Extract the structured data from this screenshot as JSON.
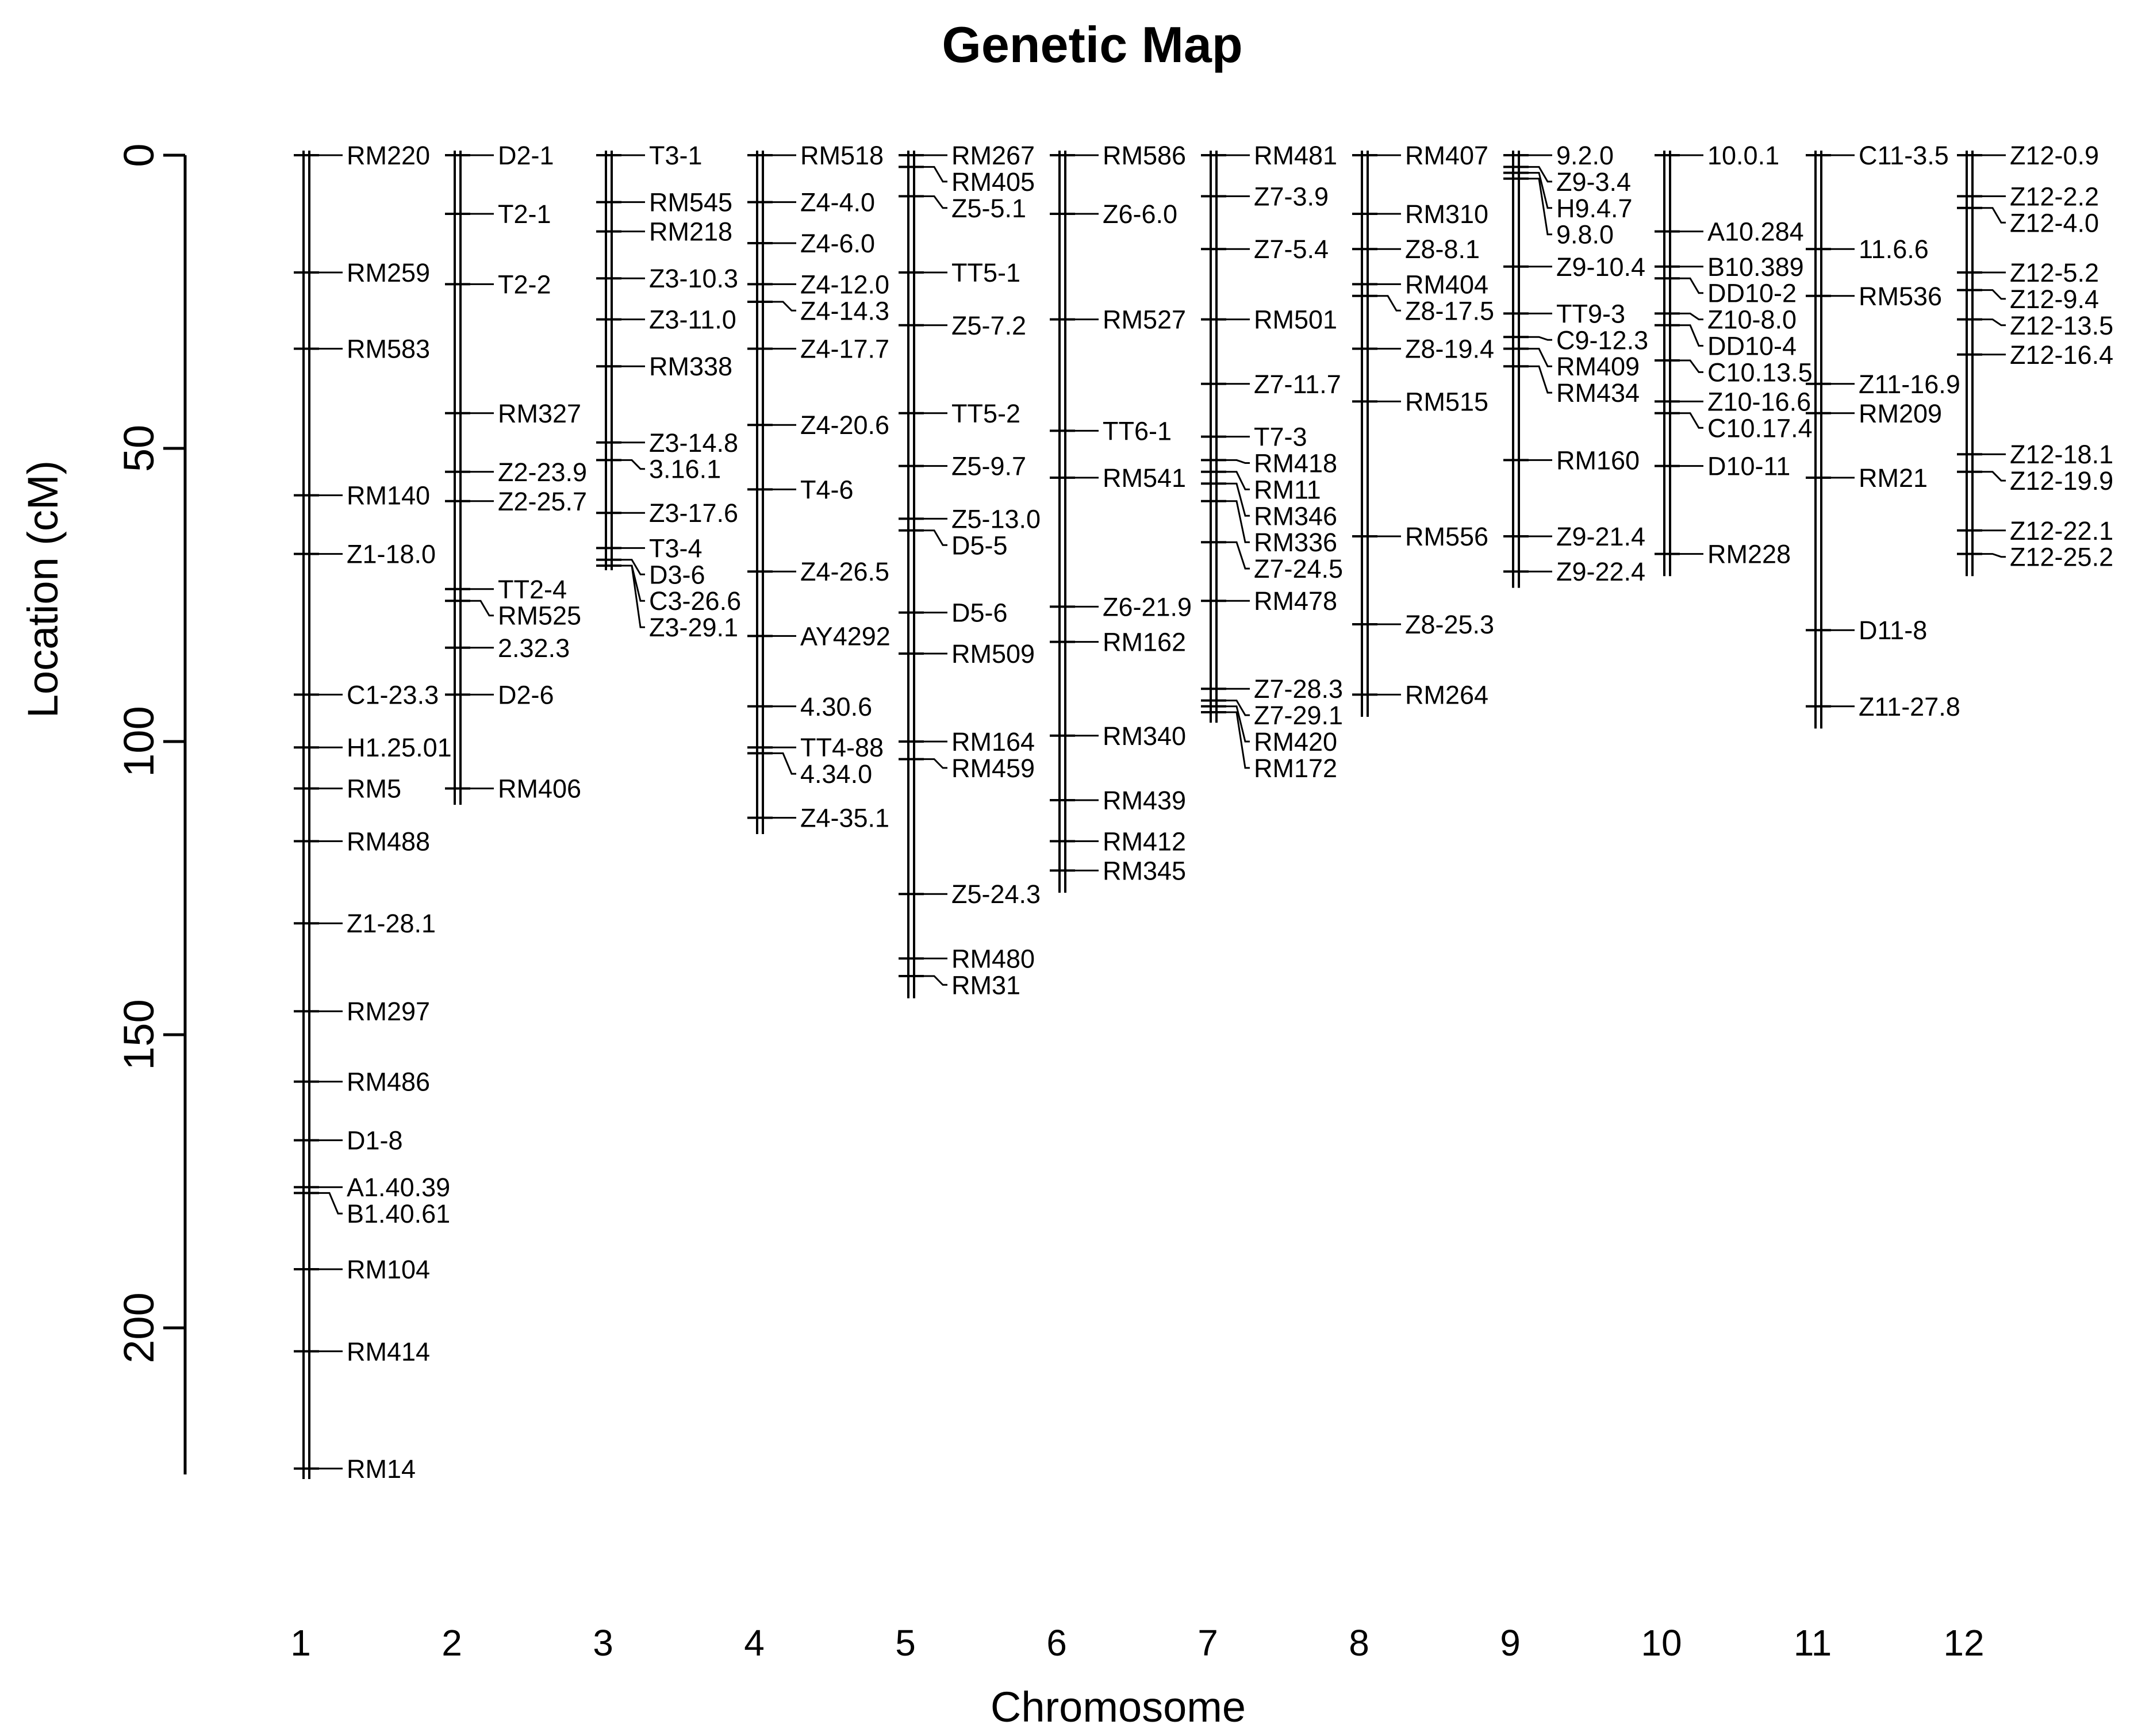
{
  "chart_data": {
    "type": "genetic-map",
    "title": "Genetic Map",
    "xlabel": "Chromosome",
    "ylabel": "Location (cM)",
    "ylim": [
      0,
      225
    ],
    "yticks": [
      0,
      50,
      100,
      150,
      200
    ],
    "chromosomes": [
      {
        "name": "1",
        "length": 225,
        "markers": [
          {
            "name": "RM220",
            "pos": 0
          },
          {
            "name": "RM259",
            "pos": 20
          },
          {
            "name": "RM583",
            "pos": 33
          },
          {
            "name": "RM140",
            "pos": 58
          },
          {
            "name": "Z1-18.0",
            "pos": 68
          },
          {
            "name": "C1-23.3",
            "pos": 92
          },
          {
            "name": "H1.25.01",
            "pos": 101
          },
          {
            "name": "RM5",
            "pos": 108
          },
          {
            "name": "RM488",
            "pos": 117
          },
          {
            "name": "Z1-28.1",
            "pos": 131
          },
          {
            "name": "RM297",
            "pos": 146
          },
          {
            "name": "RM486",
            "pos": 158
          },
          {
            "name": "D1-8",
            "pos": 168
          },
          {
            "name": "A1.40.39",
            "pos": 176
          },
          {
            "name": "B1.40.61",
            "pos": 177
          },
          {
            "name": "RM104",
            "pos": 190
          },
          {
            "name": "RM414",
            "pos": 204
          },
          {
            "name": "RM14",
            "pos": 224
          }
        ]
      },
      {
        "name": "2",
        "length": 110,
        "markers": [
          {
            "name": "D2-1",
            "pos": 0
          },
          {
            "name": "T2-1",
            "pos": 10
          },
          {
            "name": "T2-2",
            "pos": 22
          },
          {
            "name": "RM327",
            "pos": 44
          },
          {
            "name": "Z2-23.9",
            "pos": 54
          },
          {
            "name": "Z2-25.7",
            "pos": 59
          },
          {
            "name": "TT2-4",
            "pos": 74
          },
          {
            "name": "RM525",
            "pos": 76
          },
          {
            "name": "2.32.3",
            "pos": 84
          },
          {
            "name": "D2-6",
            "pos": 92
          },
          {
            "name": "RM406",
            "pos": 108
          }
        ]
      },
      {
        "name": "3",
        "length": 70,
        "markers": [
          {
            "name": "T3-1",
            "pos": 0
          },
          {
            "name": "RM545",
            "pos": 8
          },
          {
            "name": "RM218",
            "pos": 13
          },
          {
            "name": "Z3-10.3",
            "pos": 21
          },
          {
            "name": "Z3-11.0",
            "pos": 28
          },
          {
            "name": "RM338",
            "pos": 36
          },
          {
            "name": "Z3-14.8",
            "pos": 49
          },
          {
            "name": "3.16.1",
            "pos": 52
          },
          {
            "name": "Z3-17.6",
            "pos": 61
          },
          {
            "name": "T3-4",
            "pos": 67
          },
          {
            "name": "D3-6",
            "pos": 69
          },
          {
            "name": "C3-26.6",
            "pos": 70
          },
          {
            "name": "Z3-29.1",
            "pos": 70
          }
        ]
      },
      {
        "name": "4",
        "length": 115,
        "markers": [
          {
            "name": "RM518",
            "pos": 0
          },
          {
            "name": "Z4-4.0",
            "pos": 8
          },
          {
            "name": "Z4-6.0",
            "pos": 15
          },
          {
            "name": "Z4-12.0",
            "pos": 22
          },
          {
            "name": "Z4-14.3",
            "pos": 25
          },
          {
            "name": "Z4-17.7",
            "pos": 33
          },
          {
            "name": "Z4-20.6",
            "pos": 46
          },
          {
            "name": "T4-6",
            "pos": 57
          },
          {
            "name": "Z4-26.5",
            "pos": 71
          },
          {
            "name": "AY4292",
            "pos": 82
          },
          {
            "name": "4.30.6",
            "pos": 94
          },
          {
            "name": "TT4-88",
            "pos": 101
          },
          {
            "name": "4.34.0",
            "pos": 102
          },
          {
            "name": "Z4-35.1",
            "pos": 113
          }
        ]
      },
      {
        "name": "5",
        "length": 143,
        "markers": [
          {
            "name": "RM267",
            "pos": 0
          },
          {
            "name": "RM405",
            "pos": 2
          },
          {
            "name": "Z5-5.1",
            "pos": 7
          },
          {
            "name": "TT5-1",
            "pos": 20
          },
          {
            "name": "Z5-7.2",
            "pos": 29
          },
          {
            "name": "TT5-2",
            "pos": 44
          },
          {
            "name": "Z5-9.7",
            "pos": 53
          },
          {
            "name": "Z5-13.0",
            "pos": 62
          },
          {
            "name": "D5-5",
            "pos": 64
          },
          {
            "name": "D5-6",
            "pos": 78
          },
          {
            "name": "RM509",
            "pos": 85
          },
          {
            "name": "RM164",
            "pos": 100
          },
          {
            "name": "RM459",
            "pos": 103
          },
          {
            "name": "Z5-24.3",
            "pos": 126
          },
          {
            "name": "RM480",
            "pos": 137
          },
          {
            "name": "RM31",
            "pos": 140
          }
        ]
      },
      {
        "name": "6",
        "length": 125,
        "markers": [
          {
            "name": "RM586",
            "pos": 0
          },
          {
            "name": "Z6-6.0",
            "pos": 10
          },
          {
            "name": "RM527",
            "pos": 28
          },
          {
            "name": "TT6-1",
            "pos": 47
          },
          {
            "name": "RM541",
            "pos": 55
          },
          {
            "name": "Z6-21.9",
            "pos": 77
          },
          {
            "name": "RM162",
            "pos": 83
          },
          {
            "name": "RM340",
            "pos": 99
          },
          {
            "name": "RM439",
            "pos": 110
          },
          {
            "name": "RM412",
            "pos": 117
          },
          {
            "name": "RM345",
            "pos": 122
          }
        ]
      },
      {
        "name": "7",
        "length": 96,
        "markers": [
          {
            "name": "RM481",
            "pos": 0
          },
          {
            "name": "Z7-3.9",
            "pos": 7
          },
          {
            "name": "Z7-5.4",
            "pos": 16
          },
          {
            "name": "RM501",
            "pos": 28
          },
          {
            "name": "Z7-11.7",
            "pos": 39
          },
          {
            "name": "T7-3",
            "pos": 48
          },
          {
            "name": "RM418",
            "pos": 52
          },
          {
            "name": "RM11",
            "pos": 54
          },
          {
            "name": "RM346",
            "pos": 56
          },
          {
            "name": "RM336",
            "pos": 59
          },
          {
            "name": "Z7-24.5",
            "pos": 66
          },
          {
            "name": "RM478",
            "pos": 76
          },
          {
            "name": "Z7-28.3",
            "pos": 91
          },
          {
            "name": "Z7-29.1",
            "pos": 93
          },
          {
            "name": "RM420",
            "pos": 94
          },
          {
            "name": "RM172",
            "pos": 95
          }
        ]
      },
      {
        "name": "8",
        "length": 95,
        "markers": [
          {
            "name": "RM407",
            "pos": 0
          },
          {
            "name": "RM310",
            "pos": 10
          },
          {
            "name": "Z8-8.1",
            "pos": 16
          },
          {
            "name": "RM404",
            "pos": 22
          },
          {
            "name": "Z8-17.5",
            "pos": 24
          },
          {
            "name": "Z8-19.4",
            "pos": 33
          },
          {
            "name": "RM515",
            "pos": 42
          },
          {
            "name": "RM556",
            "pos": 65
          },
          {
            "name": "Z8-25.3",
            "pos": 80
          },
          {
            "name": "RM264",
            "pos": 92
          }
        ]
      },
      {
        "name": "9",
        "length": 73,
        "markers": [
          {
            "name": "9.2.0",
            "pos": 0
          },
          {
            "name": "Z9-3.4",
            "pos": 2
          },
          {
            "name": "H9.4.7",
            "pos": 3
          },
          {
            "name": "9.8.0",
            "pos": 4
          },
          {
            "name": "Z9-10.4",
            "pos": 19
          },
          {
            "name": "TT9-3",
            "pos": 27
          },
          {
            "name": "C9-12.3",
            "pos": 31
          },
          {
            "name": "RM409",
            "pos": 33
          },
          {
            "name": "RM434",
            "pos": 36
          },
          {
            "name": "RM160",
            "pos": 52
          },
          {
            "name": "Z9-21.4",
            "pos": 65
          },
          {
            "name": "Z9-22.4",
            "pos": 71
          }
        ]
      },
      {
        "name": "10",
        "length": 71,
        "markers": [
          {
            "name": "10.0.1",
            "pos": 0
          },
          {
            "name": "A10.284",
            "pos": 13
          },
          {
            "name": "B10.389",
            "pos": 19
          },
          {
            "name": "DD10-2",
            "pos": 21
          },
          {
            "name": "Z10-8.0",
            "pos": 27
          },
          {
            "name": "DD10-4",
            "pos": 29
          },
          {
            "name": "C10.13.5",
            "pos": 35
          },
          {
            "name": "Z10-16.6",
            "pos": 42
          },
          {
            "name": "C10.17.4",
            "pos": 44
          },
          {
            "name": "D10-11",
            "pos": 53
          },
          {
            "name": "RM228",
            "pos": 68
          }
        ]
      },
      {
        "name": "11",
        "length": 97,
        "markers": [
          {
            "name": "C11-3.5",
            "pos": 0
          },
          {
            "name": "11.6.6",
            "pos": 16
          },
          {
            "name": "RM536",
            "pos": 24
          },
          {
            "name": "Z11-16.9",
            "pos": 39
          },
          {
            "name": "RM209",
            "pos": 44
          },
          {
            "name": "RM21",
            "pos": 55
          },
          {
            "name": "D11-8",
            "pos": 81
          },
          {
            "name": "Z11-27.8",
            "pos": 94
          }
        ]
      },
      {
        "name": "12",
        "length": 71,
        "markers": [
          {
            "name": "Z12-0.9",
            "pos": 0
          },
          {
            "name": "Z12-2.2",
            "pos": 7
          },
          {
            "name": "Z12-4.0",
            "pos": 9
          },
          {
            "name": "Z12-5.2",
            "pos": 20
          },
          {
            "name": "Z12-9.4",
            "pos": 23
          },
          {
            "name": "Z12-13.5",
            "pos": 28
          },
          {
            "name": "Z12-16.4",
            "pos": 34
          },
          {
            "name": "Z12-18.1",
            "pos": 51
          },
          {
            "name": "Z12-19.9",
            "pos": 54
          },
          {
            "name": "Z12-22.1",
            "pos": 64
          },
          {
            "name": "Z12-25.2",
            "pos": 68
          }
        ]
      }
    ]
  }
}
